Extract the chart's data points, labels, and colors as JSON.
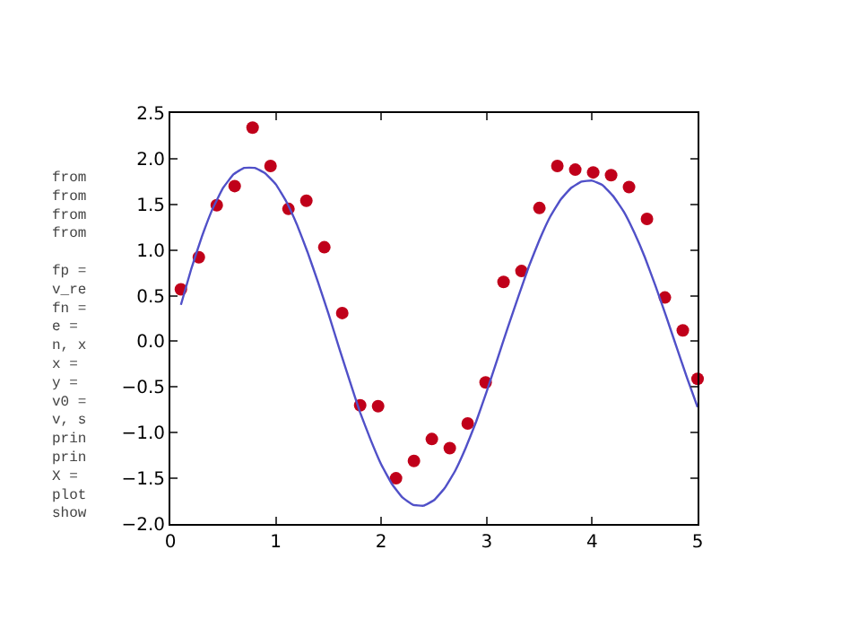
{
  "chart_data": {
    "type": "scatter",
    "xlim": [
      0,
      5
    ],
    "ylim": [
      -2.0,
      2.5
    ],
    "xticks": [
      0,
      1,
      2,
      3,
      4,
      5
    ],
    "yticks": [
      {
        "value": -2.0,
        "label": "−2.0"
      },
      {
        "value": -1.5,
        "label": "−1.5"
      },
      {
        "value": -1.0,
        "label": "−1.0"
      },
      {
        "value": -0.5,
        "label": "−0.5"
      },
      {
        "value": 0.0,
        "label": "0.0"
      },
      {
        "value": 0.5,
        "label": "0.5"
      },
      {
        "value": 1.0,
        "label": "1.0"
      },
      {
        "value": 1.5,
        "label": "1.5"
      },
      {
        "value": 2.0,
        "label": "2.0"
      },
      {
        "value": 2.5,
        "label": "2.5"
      }
    ],
    "series": [
      {
        "color": "#c0001a",
        "marker": "circle",
        "x": [
          0.1,
          0.27,
          0.44,
          0.61,
          0.78,
          0.95,
          1.12,
          1.29,
          1.46,
          1.63,
          1.8,
          1.97,
          2.14,
          2.31,
          2.48,
          2.65,
          2.82,
          2.99,
          3.16,
          3.33,
          3.5,
          3.67,
          3.84,
          4.01,
          4.18,
          4.35,
          4.52,
          4.69,
          4.86,
          5.0
        ],
        "values": [
          0.57,
          0.92,
          1.49,
          1.7,
          2.34,
          1.92,
          1.45,
          1.54,
          1.03,
          0.31,
          -0.7,
          -0.71,
          -1.5,
          -1.31,
          -1.07,
          -1.17,
          -0.9,
          -0.45,
          0.65,
          0.77,
          1.46,
          1.92,
          1.88,
          1.85,
          1.82,
          1.69,
          1.34,
          0.48,
          0.12,
          -0.41
        ]
      },
      {
        "type": "line",
        "color": "#5050c8",
        "marker": "none",
        "line_style": "solid",
        "x": [
          0.1,
          0.2,
          0.3,
          0.4,
          0.5,
          0.6,
          0.7,
          0.8,
          0.9,
          1.0,
          1.1,
          1.2,
          1.3,
          1.4,
          1.5,
          1.6,
          1.7,
          1.8,
          1.9,
          2.0,
          2.1,
          2.2,
          2.3,
          2.4,
          2.5,
          2.6,
          2.7,
          2.8,
          2.9,
          3.0,
          3.1,
          3.2,
          3.3,
          3.4,
          3.5,
          3.6,
          3.7,
          3.8,
          3.9,
          4.0,
          4.1,
          4.2,
          4.3,
          4.4,
          4.5,
          4.6,
          4.7,
          4.8,
          4.9,
          5.0
        ],
        "values": [
          0.4,
          0.8,
          1.15,
          1.45,
          1.68,
          1.83,
          1.9,
          1.9,
          1.84,
          1.72,
          1.53,
          1.28,
          0.98,
          0.65,
          0.3,
          -0.07,
          -0.43,
          -0.78,
          -1.08,
          -1.35,
          -1.56,
          -1.71,
          -1.79,
          -1.8,
          -1.74,
          -1.61,
          -1.42,
          -1.17,
          -0.88,
          -0.55,
          -0.2,
          0.15,
          0.49,
          0.82,
          1.11,
          1.36,
          1.55,
          1.68,
          1.75,
          1.76,
          1.71,
          1.59,
          1.42,
          1.19,
          0.92,
          0.61,
          0.28,
          -0.06,
          -0.4,
          -0.72
        ]
      }
    ],
    "annotations": [
      "from\nfrom\nfrom\nfrom\n\nfp =\nv_re\nfn =\ne =\nn, x\nx =\ny =\nv0 =\nv, s\nprin\nprin\nX =\nplot\nshow"
    ]
  }
}
